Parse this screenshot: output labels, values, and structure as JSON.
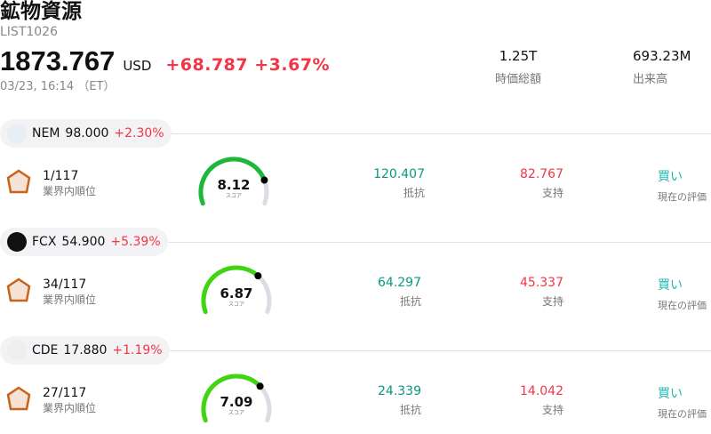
{
  "header": {
    "title": "鉱物資源",
    "code": "LIST1026",
    "price": "1873.767",
    "currency": "USD",
    "change": "+68.787",
    "change_pct": "+3.67%",
    "time": "03/23, 16:14 （ET）"
  },
  "stats": [
    {
      "value": "1.25T",
      "label": "時価総額"
    },
    {
      "value": "693.23M",
      "label": "出来高"
    }
  ],
  "colors": {
    "up": "#f23645",
    "resistance": "#089981",
    "buy": "#22b8b0",
    "gauge_high": "#1db83a",
    "gauge_mid": "#3fd611",
    "track": "#dcdce3"
  },
  "stocks": [
    {
      "ticker": "NEM",
      "price": "98.000",
      "change_pct": "+2.30%",
      "rank": "1/117",
      "rank_label": "業界内順位",
      "score": "8.12",
      "score_value": 8.12,
      "score_label": "スコア",
      "resistance": "120.407",
      "resistance_label": "抵抗",
      "support": "82.767",
      "support_label": "支持",
      "rating": "買い",
      "rating_label": "現在の評価"
    },
    {
      "ticker": "FCX",
      "price": "54.900",
      "change_pct": "+5.39%",
      "rank": "34/117",
      "rank_label": "業界内順位",
      "score": "6.87",
      "score_value": 6.87,
      "score_label": "スコア",
      "resistance": "64.297",
      "resistance_label": "抵抗",
      "support": "45.337",
      "support_label": "支持",
      "rating": "買い",
      "rating_label": "現在の評価"
    },
    {
      "ticker": "CDE",
      "price": "17.880",
      "change_pct": "+1.19%",
      "rank": "27/117",
      "rank_label": "業界内順位",
      "score": "7.09",
      "score_value": 7.09,
      "score_label": "スコア",
      "resistance": "24.339",
      "resistance_label": "抵抗",
      "support": "14.042",
      "support_label": "支持",
      "rating": "買い",
      "rating_label": "現在の評価"
    }
  ]
}
